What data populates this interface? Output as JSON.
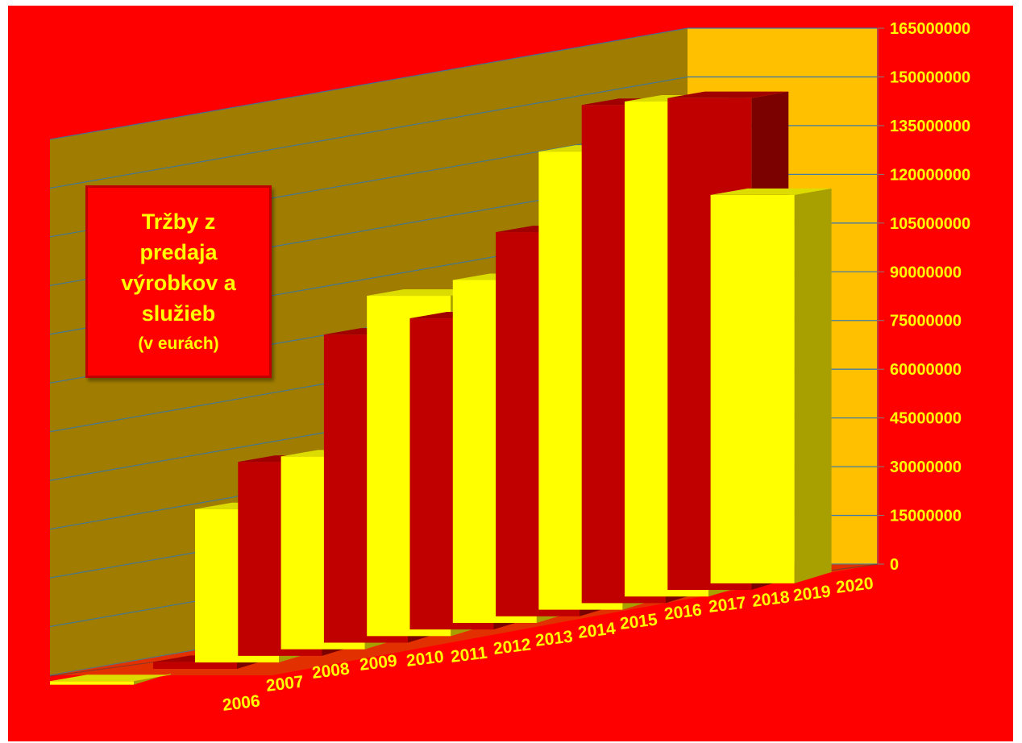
{
  "chart_data": {
    "type": "bar",
    "title_lines": [
      "Tržby z",
      "predaja",
      "výrobkov a",
      "služieb"
    ],
    "subtitle": "(v eurách)",
    "categories": [
      "2006",
      "2007",
      "2008",
      "2009",
      "2010",
      "2011",
      "2012",
      "2013",
      "2014",
      "2015",
      "2016",
      "2017",
      "2018",
      "2019",
      "2020"
    ],
    "values": [
      1000000,
      2000000,
      44000000,
      56000000,
      56000000,
      90000000,
      100000000,
      92000000,
      102000000,
      115000000,
      138000000,
      151000000,
      151000000,
      151000000,
      120000000
    ],
    "bar_colors": [
      "yellow",
      "red",
      "yellow",
      "red",
      "yellow",
      "red",
      "yellow",
      "red",
      "yellow",
      "red",
      "yellow",
      "red",
      "yellow",
      "red",
      "yellow"
    ],
    "y_ticks": [
      "0",
      "15000000",
      "30000000",
      "45000000",
      "60000000",
      "75000000",
      "90000000",
      "105000000",
      "120000000",
      "135000000",
      "150000000",
      "165000000"
    ],
    "ylim": [
      0,
      165000000
    ],
    "grid": true,
    "view": "3d"
  },
  "colors": {
    "background": "#ff0000",
    "back_wall": "#a07d00",
    "side_wall": "#ffc000",
    "red_front": "#c00000",
    "red_side": "#7b0000",
    "red_top": "#a00000",
    "yellow_front": "#ffff00",
    "yellow_side": "#a8a000",
    "yellow_top": "#dcdc00",
    "label": "#ffff00",
    "grid": "#2e75b6"
  }
}
